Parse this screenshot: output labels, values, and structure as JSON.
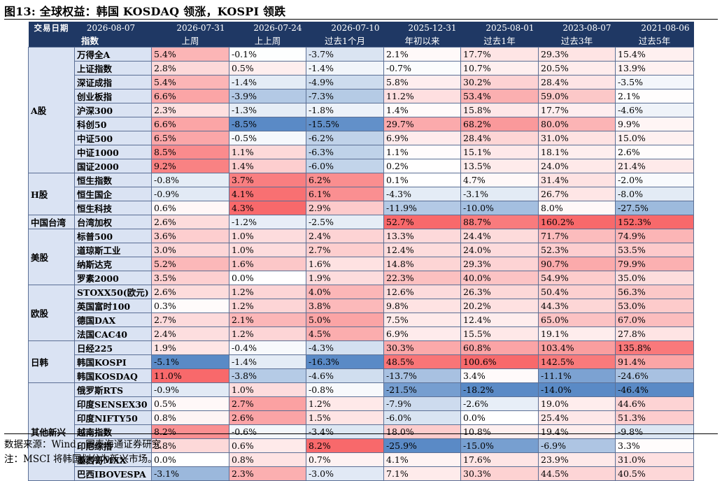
{
  "title": "图13: 全球权益：韩国 KOSDAQ 领涨，KOSPI 领跌",
  "header": {
    "date_label": "交易日期",
    "index_label": "指数",
    "dates": [
      "2026-08-07",
      "2026-07-31",
      "2026-07-24",
      "2026-07-10",
      "2025-12-31",
      "2025-08-01",
      "2023-08-07",
      "2021-08-06"
    ],
    "periods": [
      "上周",
      "上上周",
      "过去1个月",
      "年初以来",
      "过去1年",
      "过去3年",
      "过去5年"
    ]
  },
  "groups": [
    {
      "name": "A股",
      "rows": [
        {
          "name": "万得全A",
          "values": [
            "5.4%",
            "-0.1%",
            "-3.7%",
            "2.1%",
            "17.7%",
            "29.3%",
            "15.4%"
          ]
        },
        {
          "name": "上证指数",
          "values": [
            "2.8%",
            "0.5%",
            "-1.4%",
            "-0.7%",
            "10.7%",
            "20.5%",
            "13.9%"
          ]
        },
        {
          "name": "深证成指",
          "values": [
            "5.4%",
            "-1.4%",
            "-4.9%",
            "5.8%",
            "30.2%",
            "28.4%",
            "-3.5%"
          ]
        },
        {
          "name": "创业板指",
          "values": [
            "6.6%",
            "-3.9%",
            "-7.3%",
            "11.2%",
            "53.4%",
            "59.0%",
            "2.1%"
          ]
        },
        {
          "name": "沪深300",
          "values": [
            "2.3%",
            "-1.3%",
            "-1.8%",
            "1.4%",
            "15.8%",
            "17.7%",
            "-4.6%"
          ]
        },
        {
          "name": "科创50",
          "values": [
            "6.6%",
            "-8.5%",
            "-15.5%",
            "29.7%",
            "68.2%",
            "80.0%",
            "9.9%"
          ]
        },
        {
          "name": "中证500",
          "values": [
            "6.5%",
            "-0.5%",
            "-6.2%",
            "6.9%",
            "28.4%",
            "31.0%",
            "15.0%"
          ]
        },
        {
          "name": "中证1000",
          "values": [
            "8.5%",
            "1.1%",
            "-6.3%",
            "1.1%",
            "15.1%",
            "18.1%",
            "2.6%"
          ]
        },
        {
          "name": "国证2000",
          "values": [
            "9.2%",
            "1.4%",
            "-6.0%",
            "0.2%",
            "13.5%",
            "24.0%",
            "21.4%"
          ]
        }
      ]
    },
    {
      "name": "H股",
      "rows": [
        {
          "name": "恒生指数",
          "values": [
            "-0.8%",
            "3.7%",
            "6.2%",
            "0.1%",
            "4.7%",
            "31.4%",
            "-2.0%"
          ]
        },
        {
          "name": "恒生国企",
          "values": [
            "-0.9%",
            "4.1%",
            "6.1%",
            "-4.3%",
            "-3.1%",
            "26.7%",
            "-8.0%"
          ]
        },
        {
          "name": "恒生科技",
          "values": [
            "0.6%",
            "4.3%",
            "2.9%",
            "-11.9%",
            "-10.0%",
            "8.0%",
            "-27.5%"
          ]
        }
      ]
    },
    {
      "name": "中国台湾",
      "rows": [
        {
          "name": "台湾加权",
          "values": [
            "2.6%",
            "-1.2%",
            "-2.5%",
            "52.7%",
            "88.7%",
            "160.2%",
            "152.3%"
          ]
        }
      ]
    },
    {
      "name": "美股",
      "rows": [
        {
          "name": "标普500",
          "values": [
            "3.6%",
            "1.0%",
            "2.4%",
            "13.3%",
            "24.4%",
            "71.7%",
            "74.9%"
          ]
        },
        {
          "name": "道琼斯工业",
          "values": [
            "3.0%",
            "1.0%",
            "2.7%",
            "12.4%",
            "24.0%",
            "52.3%",
            "53.5%"
          ]
        },
        {
          "name": "纳斯达克",
          "values": [
            "5.2%",
            "1.6%",
            "1.6%",
            "14.8%",
            "29.3%",
            "90.7%",
            "79.9%"
          ]
        },
        {
          "name": "罗素2000",
          "values": [
            "3.5%",
            "0.0%",
            "1.9%",
            "22.3%",
            "40.0%",
            "54.9%",
            "35.0%"
          ]
        }
      ]
    },
    {
      "name": "欧股",
      "rows": [
        {
          "name": "STOXX50(欧元)",
          "values": [
            "2.6%",
            "1.2%",
            "4.0%",
            "12.6%",
            "26.3%",
            "50.4%",
            "56.3%"
          ]
        },
        {
          "name": "英国富时100",
          "values": [
            "0.3%",
            "1.2%",
            "3.8%",
            "9.8%",
            "20.2%",
            "44.3%",
            "53.0%"
          ]
        },
        {
          "name": "德国DAX",
          "values": [
            "2.7%",
            "2.1%",
            "5.0%",
            "7.5%",
            "12.4%",
            "65.0%",
            "67.0%"
          ]
        },
        {
          "name": "法国CAC40",
          "values": [
            "2.4%",
            "1.2%",
            "4.5%",
            "6.9%",
            "15.5%",
            "19.1%",
            "27.8%"
          ]
        }
      ]
    },
    {
      "name": "日韩",
      "rows": [
        {
          "name": "日经225",
          "values": [
            "1.9%",
            "-0.4%",
            "-4.3%",
            "30.3%",
            "60.8%",
            "103.4%",
            "135.8%"
          ]
        },
        {
          "name": "韩国KOSPI",
          "values": [
            "-5.1%",
            "-1.4%",
            "-16.3%",
            "48.5%",
            "100.6%",
            "142.5%",
            "91.4%"
          ]
        },
        {
          "name": "韩国KOSDAQ",
          "values": [
            "11.0%",
            "-3.8%",
            "-4.6%",
            "-13.7%",
            "3.4%",
            "-11.1%",
            "-24.6%"
          ]
        }
      ]
    },
    {
      "name": "其他新兴",
      "rows": [
        {
          "name": "俄罗斯RTS",
          "values": [
            "-0.9%",
            "1.0%",
            "-0.8%",
            "-21.5%",
            "-18.2%",
            "-14.0%",
            "-46.4%"
          ]
        },
        {
          "name": "印度SENSEX30",
          "values": [
            "0.5%",
            "2.7%",
            "1.2%",
            "-7.9%",
            "-2.6%",
            "19.0%",
            "44.6%"
          ]
        },
        {
          "name": "印度NIFTY50",
          "values": [
            "0.8%",
            "2.6%",
            "1.5%",
            "-6.0%",
            "0.0%",
            "25.4%",
            "51.3%"
          ]
        },
        {
          "name": "越南指数",
          "values": [
            "8.2%",
            "-0.6%",
            "-3.4%",
            "18.0%",
            "10.8%",
            "19.4%",
            "-9.8%"
          ]
        },
        {
          "name": "印尼综指",
          "values": [
            "2.8%",
            "0.6%",
            "8.2%",
            "-25.9%",
            "-15.0%",
            "-6.9%",
            "3.3%"
          ]
        },
        {
          "name": "墨西哥MXX",
          "values": [
            "0.0%",
            "0.8%",
            "0.7%",
            "4.1%",
            "17.6%",
            "23.9%",
            "31.0%"
          ]
        },
        {
          "name": "巴西IBOVESPA",
          "values": [
            "-3.1%",
            "2.3%",
            "-3.0%",
            "7.1%",
            "30.3%",
            "44.5%",
            "40.5%"
          ]
        }
      ]
    }
  ],
  "footer": {
    "source": "数据来源：Wind，国泰海通证券研究",
    "note": "注：MSCI 将韩国划分为新兴市场。"
  },
  "colors": {
    "header": "#1f3864",
    "label_bg": "#dae3f3",
    "positive": "#f8696b",
    "negative": "#5a8ac6",
    "border": "#5b6f95"
  }
}
